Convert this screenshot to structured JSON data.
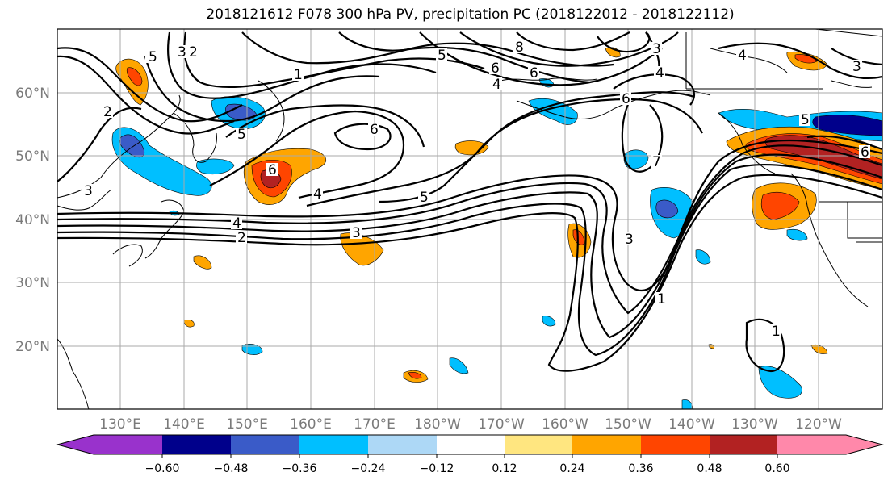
{
  "title": "2018121612 F078 300 hPa PV, precipitation PC (2018122012 - 2018122112)",
  "lat_labels": [
    "60°N",
    "50°N",
    "40°N",
    "30°N",
    "20°N"
  ],
  "lon_labels": [
    "130°E",
    "140°E",
    "150°E",
    "160°E",
    "170°E",
    "180°W",
    "170°W",
    "160°W",
    "150°W",
    "140°W",
    "130°W",
    "120°W"
  ],
  "colorbar": {
    "colors": [
      "#9932cc",
      "#00008b",
      "#3a5bc8",
      "#00bfff",
      "#add8f6",
      "#ffffff",
      "#ffe680",
      "#ffa500",
      "#ff4500",
      "#b22222",
      "#ff88aa"
    ],
    "tick_labels": [
      "−0.60",
      "−0.48",
      "−0.36",
      "−0.24",
      "−0.12",
      "0.12",
      "0.24",
      "0.36",
      "0.48",
      "0.60"
    ]
  },
  "contour_labels": [
    "5",
    "3",
    "2",
    "1",
    "2",
    "3",
    "5",
    "6",
    "4",
    "5",
    "8",
    "6",
    "6",
    "4",
    "4",
    "6",
    "5",
    "4",
    "3",
    "2",
    "3",
    "6",
    "7",
    "3",
    "1",
    "1",
    "5",
    "6",
    "4",
    "3"
  ],
  "colors": {
    "grid": "#aaaaaa",
    "contour": "#000000",
    "coast": "#000000"
  }
}
